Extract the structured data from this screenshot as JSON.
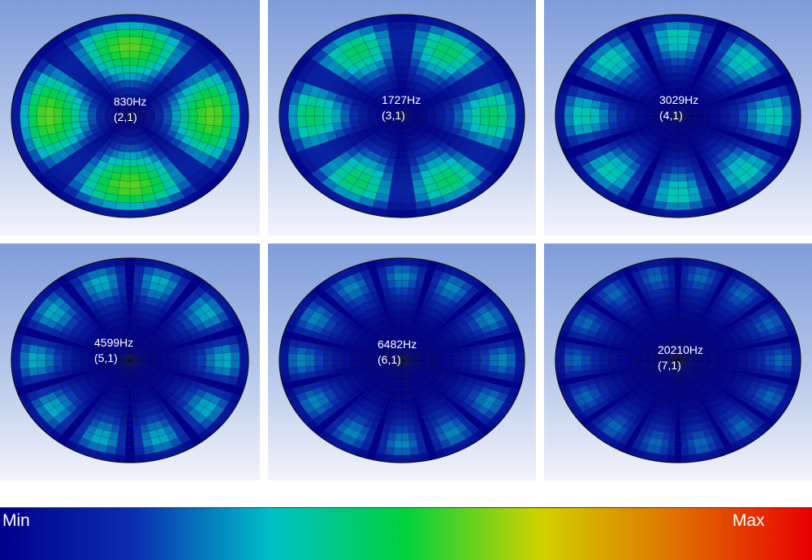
{
  "panels": [
    {
      "freq": "830Hz",
      "mode": "(2,1)",
      "lobes": 4
    },
    {
      "freq": "1727Hz",
      "mode": "(3,1)",
      "lobes": 6
    },
    {
      "freq": "3029Hz",
      "mode": "(4,1)",
      "lobes": 8
    },
    {
      "freq": "4599Hz",
      "mode": "(5,1)",
      "lobes": 10
    },
    {
      "freq": "6482Hz",
      "mode": "(6,1)",
      "lobes": 12
    },
    {
      "freq": "20210Hz",
      "mode": "(7,1)",
      "lobes": 14
    }
  ],
  "colorbar": {
    "min_label": "Min",
    "max_label": "Max",
    "stops": [
      "#00008a",
      "#0a2fb0",
      "#00c0c8",
      "#00d23c",
      "#d2d200",
      "#e07000",
      "#e80000"
    ]
  }
}
